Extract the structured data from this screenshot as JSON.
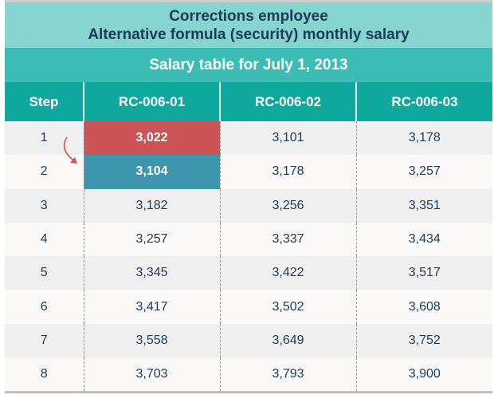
{
  "title": {
    "line1": "Corrections employee",
    "line2": "Alternative formula (security) monthly salary"
  },
  "subtitle": "Salary table for July 1, 2013",
  "columns": [
    "Step",
    "RC-006-01",
    "RC-006-02",
    "RC-006-03"
  ],
  "rows": [
    [
      "1",
      "3,022",
      "3,101",
      "3,178"
    ],
    [
      "2",
      "3,104",
      "3,178",
      "3,257"
    ],
    [
      "3",
      "3,182",
      "3,256",
      "3,351"
    ],
    [
      "4",
      "3,257",
      "3,337",
      "3,434"
    ],
    [
      "5",
      "3,345",
      "3,422",
      "3,517"
    ],
    [
      "6",
      "3,417",
      "3,502",
      "3,608"
    ],
    [
      "7",
      "3,558",
      "3,649",
      "3,752"
    ],
    [
      "8",
      "3,703",
      "3,793",
      "3,900"
    ]
  ],
  "highlights": {
    "from_color": "#cc5456",
    "to_color": "#3d95ae",
    "arrow_icon": "curved-arrow-down-right"
  }
}
